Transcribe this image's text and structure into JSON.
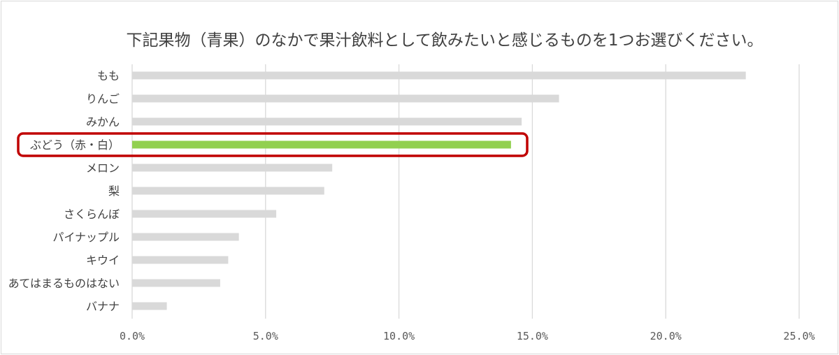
{
  "chart_data": {
    "type": "bar",
    "orientation": "horizontal",
    "title": "下記果物（青果）のなかで果汁飲料として飲みたいと感じるものを1つお選びください。",
    "categories": [
      "もも",
      "りんご",
      "みかん",
      "ぶどう（赤・白）",
      "メロン",
      "梨",
      "さくらんぼ",
      "パイナップル",
      "キウイ",
      "あてはまるものはない",
      "バナナ"
    ],
    "values": [
      23.0,
      16.0,
      14.6,
      14.2,
      7.5,
      7.2,
      5.4,
      4.0,
      3.6,
      3.3,
      1.3
    ],
    "x_ticks": [
      "0.0%",
      "5.0%",
      "10.0%",
      "15.0%",
      "20.0%",
      "25.0%"
    ],
    "xlim": [
      0,
      25
    ],
    "grid": true,
    "highlight_category": "ぶどう（赤・白）",
    "colors": {
      "bar": "#d9d9d9",
      "highlight_bar": "#92d050",
      "highlight_box": "#c00000",
      "grid": "#d9d9d9"
    }
  }
}
